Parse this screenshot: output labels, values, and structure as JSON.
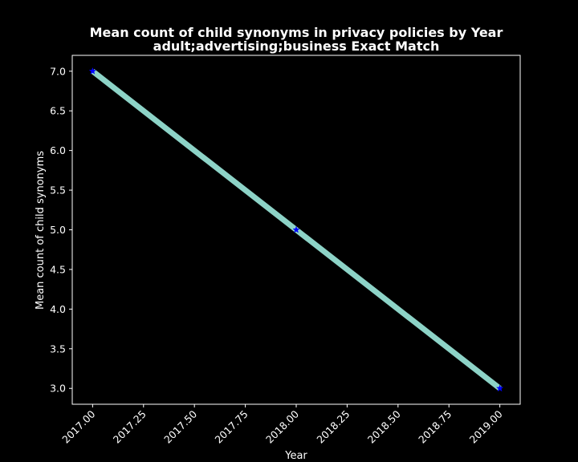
{
  "chart_data": {
    "type": "line",
    "title": "Mean count of child synonyms in privacy policies by Year",
    "subtitle": "adult;advertising;business Exact Match",
    "xlabel": "Year",
    "ylabel": "Mean count of child synonyms",
    "x": [
      2017,
      2018,
      2019
    ],
    "series": [
      {
        "values": [
          7.0,
          5.0,
          3.0
        ]
      }
    ],
    "xlim": [
      2016.9,
      2019.1
    ],
    "ylim": [
      2.8,
      7.2
    ],
    "xticks": [
      "2017.00",
      "2017.25",
      "2017.50",
      "2017.75",
      "2018.00",
      "2018.25",
      "2018.50",
      "2018.75",
      "2019.00"
    ],
    "yticks": [
      "3.0",
      "3.5",
      "4.0",
      "4.5",
      "5.0",
      "5.5",
      "6.0",
      "6.5",
      "7.0"
    ],
    "grid": false,
    "line_color": "#8dd3c7",
    "marker_color": "#0000ff",
    "background": "#000000",
    "foreground": "#ffffff"
  }
}
